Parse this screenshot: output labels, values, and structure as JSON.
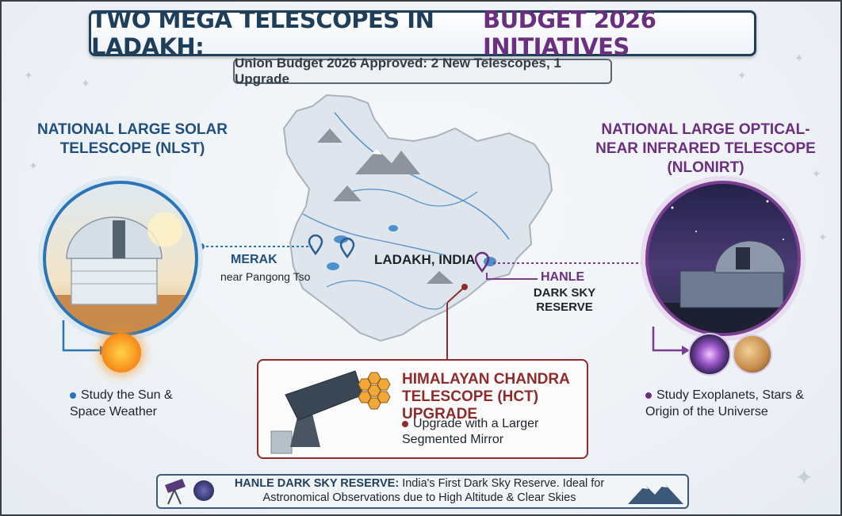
{
  "header": {
    "title_part1": "TWO MEGA TELESCOPES IN LADAKH:",
    "title_part2": "BUDGET 2026 INITIATIVES",
    "subtitle": "Union Budget 2026 Approved: 2 New Telescopes, 1 Upgrade"
  },
  "nlst": {
    "title": "NATIONAL LARGE SOLAR TELESCOPE (NLST)",
    "point": "Study the Sun & Space Weather",
    "location": "MERAK",
    "location_sub": "near Pangong Tso"
  },
  "nlonirt": {
    "title": "NATIONAL LARGE OPTICAL-NEAR INFRARED TELESCOPE (NLONIRT)",
    "point": "Study Exoplanets, Stars & Origin of the Universe",
    "location": "HANLE",
    "location_sub": "DARK SKY RESERVE"
  },
  "map": {
    "label": "LADAKH, INDIA"
  },
  "hct": {
    "title": "HIMALAYAN CHANDRA TELESCOPE (HCT) UPGRADE",
    "point": "Upgrade with a Larger Segmented Mirror"
  },
  "footer": {
    "bold": "HANLE DARK SKY RESERVE:",
    "text": "India's First Dark Sky Reserve. Ideal for Astronomical Observations due to High Altitude & Clear Skies"
  },
  "colors": {
    "navy": "#1f3e5a",
    "blue": "#2b74b8",
    "purple": "#6b2f80",
    "red": "#8e2b2b"
  }
}
